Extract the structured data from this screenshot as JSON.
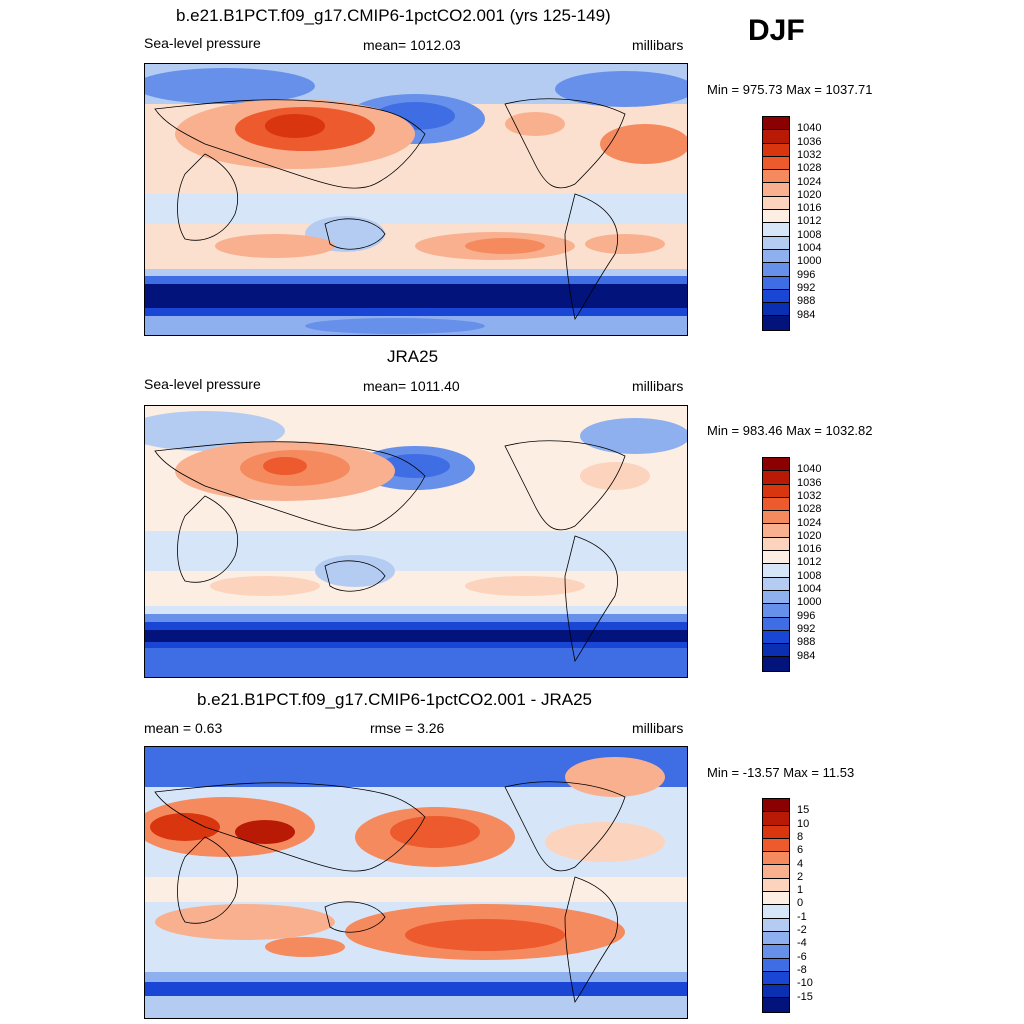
{
  "season": "DJF",
  "panels": [
    {
      "title": "b.e21.B1PCT.f09_g17.CMIP6-1pctCO2.001 (yrs 125-149)",
      "left_label": "Sea-level pressure",
      "center_label": "mean= 1012.03",
      "right_label": "millibars",
      "minmax": "Min = 975.73 Max = 1037.71",
      "colorbar": {
        "labels": [
          "1040",
          "1036",
          "1032",
          "1028",
          "1024",
          "1020",
          "1016",
          "1012",
          "1008",
          "1004",
          "1000",
          "996",
          "992",
          "988",
          "984"
        ],
        "colors": [
          "#8b0000",
          "#b81a05",
          "#d9360f",
          "#ec5a2e",
          "#f58a5f",
          "#f9b08f",
          "#fcd3bd",
          "#fdeee3",
          "#d6e6f8",
          "#b5ccf2",
          "#8fb0ee",
          "#6690ea",
          "#3f6de3",
          "#1a46d6",
          "#0b2fb2",
          "#02137c"
        ]
      }
    },
    {
      "title": "JRA25",
      "left_label": "Sea-level pressure",
      "center_label": "mean= 1011.40",
      "right_label": "millibars",
      "minmax": "Min = 983.46 Max = 1032.82",
      "colorbar": {
        "labels": [
          "1040",
          "1036",
          "1032",
          "1028",
          "1024",
          "1020",
          "1016",
          "1012",
          "1008",
          "1004",
          "1000",
          "996",
          "992",
          "988",
          "984"
        ],
        "colors": [
          "#8b0000",
          "#b81a05",
          "#d9360f",
          "#ec5a2e",
          "#f58a5f",
          "#f9b08f",
          "#fcd3bd",
          "#fdeee3",
          "#d6e6f8",
          "#b5ccf2",
          "#8fb0ee",
          "#6690ea",
          "#3f6de3",
          "#1a46d6",
          "#0b2fb2",
          "#02137c"
        ]
      }
    },
    {
      "title": "b.e21.B1PCT.f09_g17.CMIP6-1pctCO2.001 - JRA25",
      "left_label": "mean =   0.63",
      "center_label": "rmse =   3.26",
      "right_label": "millibars",
      "minmax": "Min = -13.57 Max =  11.53",
      "colorbar": {
        "labels": [
          "15",
          "10",
          "8",
          "6",
          "4",
          "2",
          "1",
          "0",
          "-1",
          "-2",
          "-4",
          "-6",
          "-8",
          "-10",
          "-15"
        ],
        "colors": [
          "#8b0000",
          "#b81a05",
          "#d9360f",
          "#ec5a2e",
          "#f58a5f",
          "#f9b08f",
          "#fcd3bd",
          "#fdeee3",
          "#d6e6f8",
          "#b5ccf2",
          "#8fb0ee",
          "#6690ea",
          "#3f6de3",
          "#1a46d6",
          "#0b2fb2",
          "#02137c"
        ]
      }
    }
  ]
}
